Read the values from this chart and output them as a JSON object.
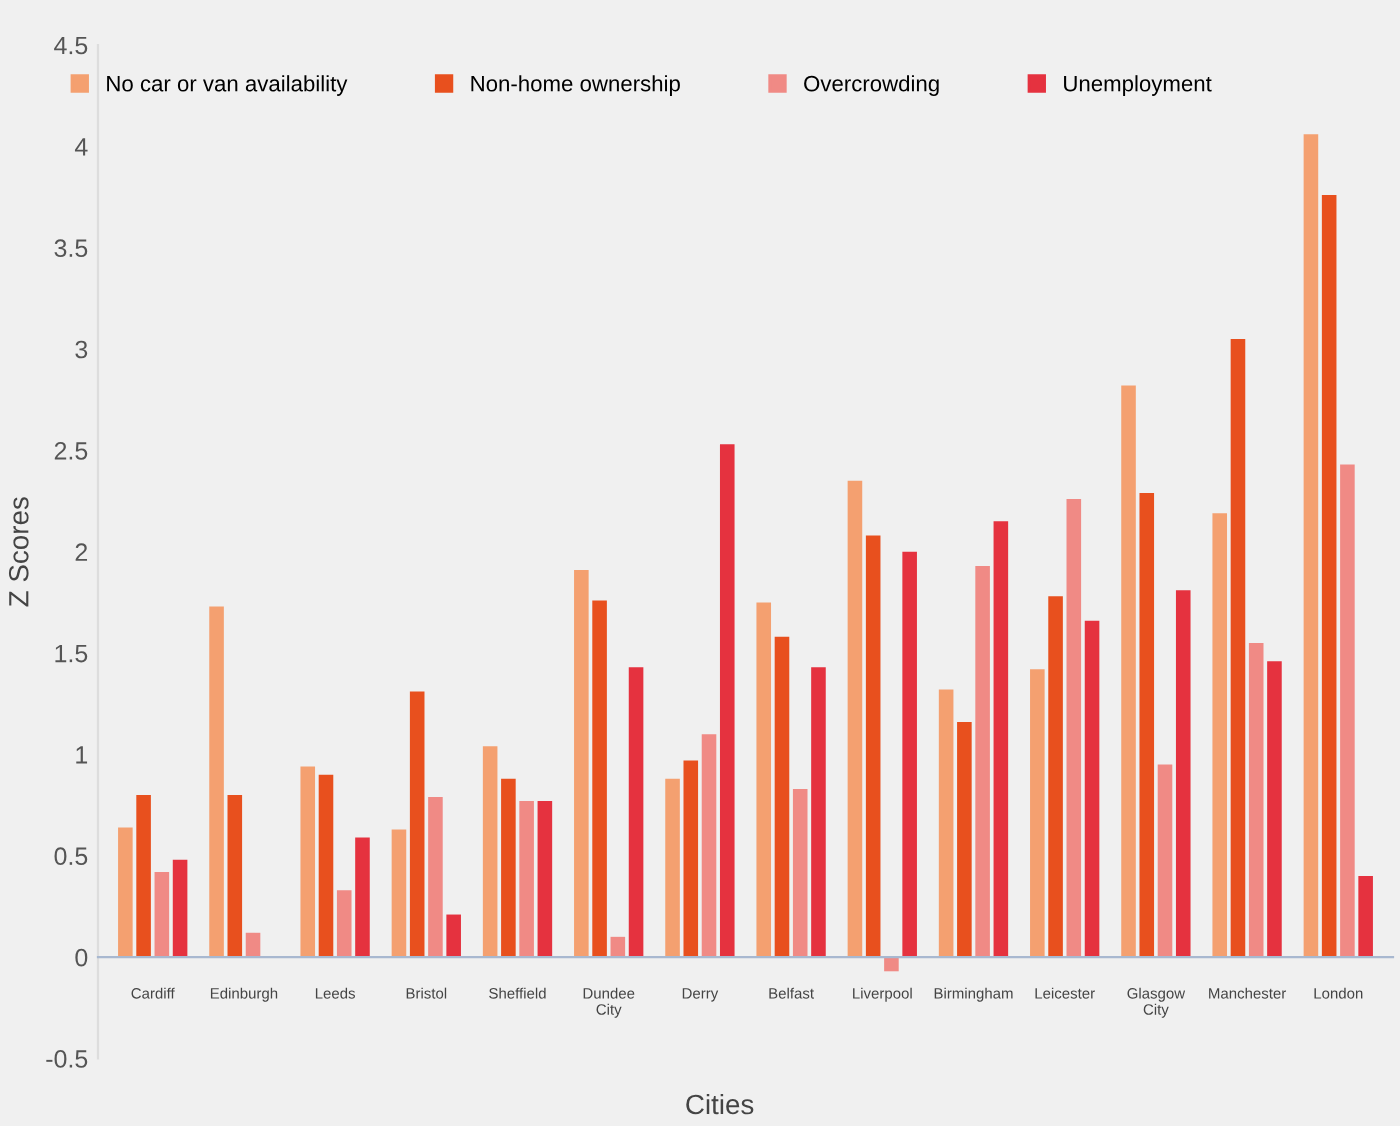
{
  "chart_data": {
    "type": "bar",
    "xlabel": "Cities",
    "ylabel": "Z Scores",
    "categories": [
      "Cardiff",
      "Edinburgh",
      "Leeds",
      "Bristol",
      "Sheffield",
      "Dundee\nCity",
      "Derry",
      "Belfast",
      "Liverpool",
      "Birmingham",
      "Leicester",
      "Glasgow\nCity",
      "Manchester",
      "London"
    ],
    "series": [
      {
        "name": "No car or van availability",
        "color": "#f4a070",
        "values": [
          0.64,
          1.73,
          0.94,
          0.63,
          1.04,
          1.91,
          0.88,
          1.75,
          2.35,
          1.32,
          1.42,
          2.82,
          2.19,
          4.06
        ]
      },
      {
        "name": "Non-home ownership",
        "color": "#e8501e",
        "values": [
          0.8,
          0.8,
          0.9,
          1.31,
          0.88,
          1.76,
          0.97,
          1.58,
          2.08,
          1.16,
          1.78,
          2.29,
          3.05,
          3.76
        ]
      },
      {
        "name": "Overcrowding",
        "color": "#f08a85",
        "values": [
          0.42,
          0.12,
          0.33,
          0.79,
          0.77,
          0.1,
          1.1,
          0.83,
          -0.07,
          1.93,
          2.26,
          0.95,
          1.55,
          2.43
        ]
      },
      {
        "name": "Unemployment",
        "color": "#e5323f",
        "values": [
          0.48,
          null,
          0.59,
          0.21,
          0.77,
          1.43,
          2.53,
          1.43,
          2.0,
          2.15,
          1.66,
          1.81,
          1.46,
          0.4
        ]
      }
    ],
    "ylim": [
      -0.5,
      4.5
    ],
    "yticks": [
      -0.5,
      0,
      0.5,
      1,
      1.5,
      2,
      2.5,
      3,
      3.5,
      4,
      4.5
    ],
    "legend": "top",
    "grid": false
  }
}
